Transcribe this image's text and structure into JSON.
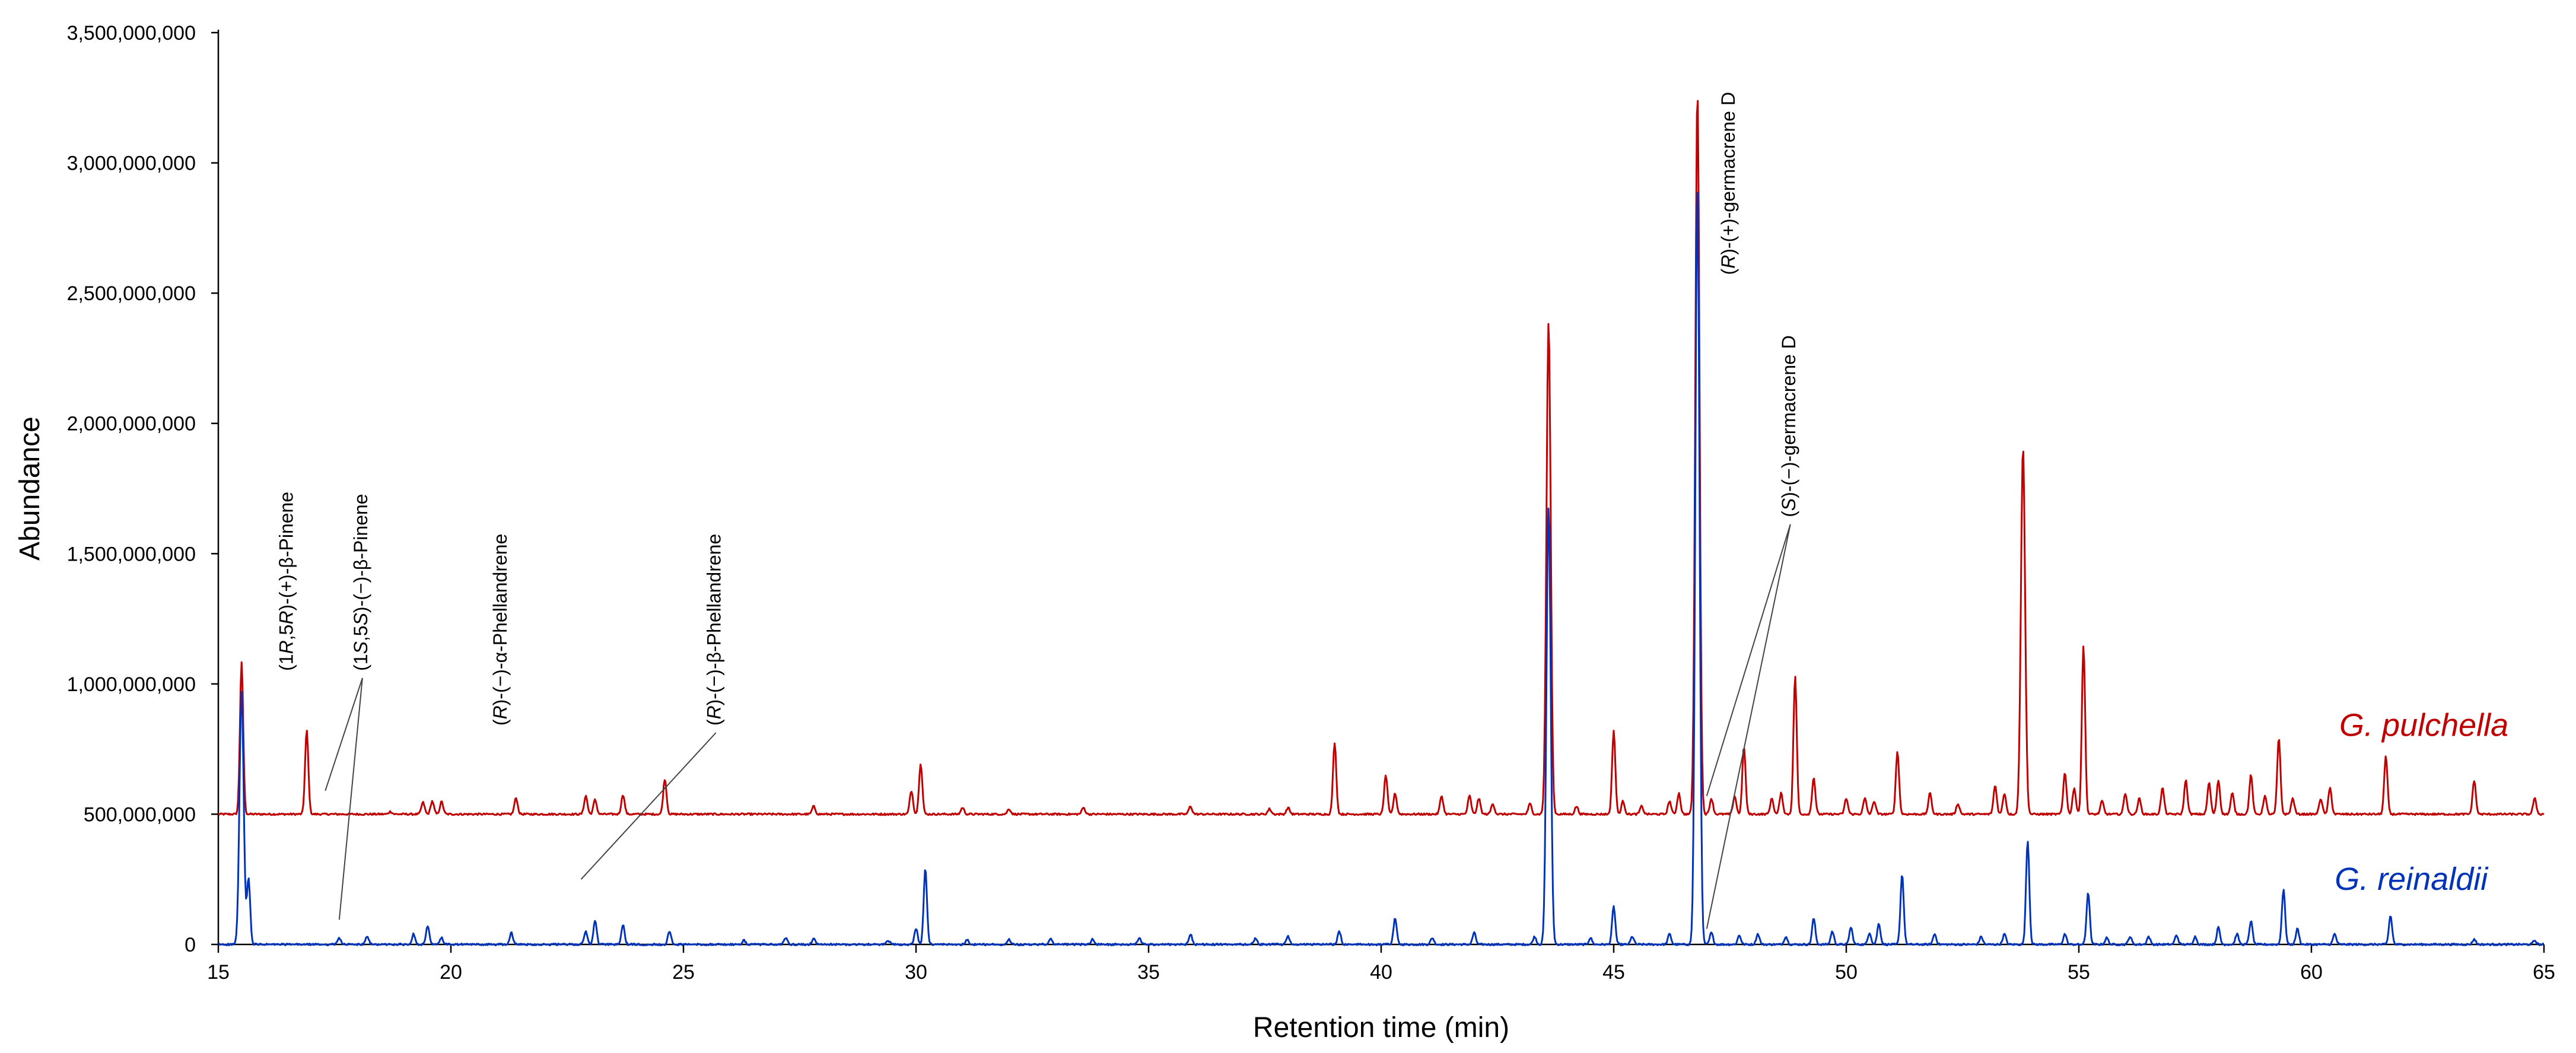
{
  "colors": {
    "g_pulchella": "#c00000",
    "g_reinaldii": "#0033b8",
    "axis": "#000000",
    "leader": "#444444"
  },
  "chart_data": {
    "type": "line",
    "xlabel": "Retention time (min)",
    "ylabel": "Abundance",
    "xlim": [
      15,
      65
    ],
    "ylim": [
      0,
      3500000000
    ],
    "grid": false,
    "x_ticks": [
      15,
      20,
      25,
      30,
      35,
      40,
      45,
      50,
      55,
      60,
      65
    ],
    "x_tick_labels": [
      "15",
      "20",
      "25",
      "30",
      "35",
      "40",
      "45",
      "50",
      "55",
      "60",
      "65"
    ],
    "y_ticks": [
      0,
      500000000,
      1000000000,
      1500000000,
      2000000000,
      2500000000,
      3000000000,
      3500000000
    ],
    "y_tick_labels": [
      "0",
      "500,000,000",
      "1,000,000,000",
      "1,500,000,000",
      "2,000,000,000",
      "2,500,000,000",
      "3,000,000,000",
      "3,500,000,000"
    ],
    "series": [
      {
        "name": "G. pulchella",
        "color": "#c00000",
        "baseline": 500000000,
        "label_position": "right, above baseline",
        "peaks": [
          [
            15.5,
            1080000000
          ],
          [
            16.9,
            820000000
          ],
          [
            18.7,
            510000000
          ],
          [
            19.4,
            545000000
          ],
          [
            19.6,
            550000000
          ],
          [
            19.8,
            548000000
          ],
          [
            21.4,
            562000000
          ],
          [
            22.9,
            570000000
          ],
          [
            23.1,
            555000000
          ],
          [
            23.7,
            575000000
          ],
          [
            24.6,
            635000000
          ],
          [
            27.8,
            530000000
          ],
          [
            29.9,
            590000000
          ],
          [
            30.1,
            695000000
          ],
          [
            31.0,
            525000000
          ],
          [
            32.0,
            520000000
          ],
          [
            33.6,
            525000000
          ],
          [
            35.9,
            530000000
          ],
          [
            37.6,
            520000000
          ],
          [
            38.0,
            525000000
          ],
          [
            39.0,
            775000000
          ],
          [
            40.1,
            650000000
          ],
          [
            40.3,
            580000000
          ],
          [
            41.3,
            570000000
          ],
          [
            41.9,
            570000000
          ],
          [
            42.1,
            560000000
          ],
          [
            42.4,
            540000000
          ],
          [
            43.2,
            540000000
          ],
          [
            43.6,
            2390000000
          ],
          [
            44.2,
            530000000
          ],
          [
            45.0,
            820000000
          ],
          [
            45.2,
            550000000
          ],
          [
            45.6,
            530000000
          ],
          [
            46.2,
            550000000
          ],
          [
            46.4,
            580000000
          ],
          [
            46.8,
            3280000000
          ],
          [
            47.1,
            560000000
          ],
          [
            47.6,
            570000000
          ],
          [
            47.8,
            760000000
          ],
          [
            48.4,
            560000000
          ],
          [
            48.6,
            580000000
          ],
          [
            48.9,
            1030000000
          ],
          [
            49.3,
            640000000
          ],
          [
            50.0,
            560000000
          ],
          [
            50.4,
            560000000
          ],
          [
            50.6,
            550000000
          ],
          [
            51.1,
            740000000
          ],
          [
            51.8,
            580000000
          ],
          [
            52.4,
            540000000
          ],
          [
            53.2,
            610000000
          ],
          [
            53.4,
            580000000
          ],
          [
            53.8,
            1910000000
          ],
          [
            54.7,
            660000000
          ],
          [
            54.9,
            600000000
          ],
          [
            55.1,
            1150000000
          ],
          [
            55.5,
            550000000
          ],
          [
            56.0,
            580000000
          ],
          [
            56.3,
            560000000
          ],
          [
            56.8,
            600000000
          ],
          [
            57.3,
            630000000
          ],
          [
            57.8,
            620000000
          ],
          [
            58.0,
            630000000
          ],
          [
            58.3,
            580000000
          ],
          [
            58.7,
            650000000
          ],
          [
            59.0,
            570000000
          ],
          [
            59.3,
            790000000
          ],
          [
            59.6,
            560000000
          ],
          [
            60.2,
            560000000
          ],
          [
            60.4,
            600000000
          ],
          [
            61.6,
            720000000
          ],
          [
            63.5,
            630000000
          ],
          [
            64.8,
            560000000
          ]
        ]
      },
      {
        "name": "G. reinaldii",
        "color": "#0033b8",
        "baseline": 0,
        "label_position": "right, near baseline",
        "peaks": [
          [
            15.5,
            970000000
          ],
          [
            15.65,
            250000000
          ],
          [
            17.6,
            25000000
          ],
          [
            18.2,
            30000000
          ],
          [
            19.2,
            40000000
          ],
          [
            19.5,
            70000000
          ],
          [
            19.8,
            25000000
          ],
          [
            21.3,
            45000000
          ],
          [
            22.9,
            50000000
          ],
          [
            23.1,
            90000000
          ],
          [
            23.7,
            75000000
          ],
          [
            24.7,
            50000000
          ],
          [
            26.3,
            15000000
          ],
          [
            27.2,
            25000000
          ],
          [
            27.8,
            20000000
          ],
          [
            29.4,
            15000000
          ],
          [
            30.0,
            60000000
          ],
          [
            30.2,
            290000000
          ],
          [
            31.1,
            20000000
          ],
          [
            32.0,
            20000000
          ],
          [
            32.9,
            20000000
          ],
          [
            33.8,
            20000000
          ],
          [
            34.8,
            25000000
          ],
          [
            35.9,
            40000000
          ],
          [
            37.3,
            25000000
          ],
          [
            38.0,
            30000000
          ],
          [
            39.1,
            50000000
          ],
          [
            40.3,
            100000000
          ],
          [
            41.1,
            25000000
          ],
          [
            42.0,
            45000000
          ],
          [
            43.3,
            30000000
          ],
          [
            43.6,
            1680000000
          ],
          [
            44.5,
            25000000
          ],
          [
            45.0,
            145000000
          ],
          [
            45.4,
            30000000
          ],
          [
            46.2,
            40000000
          ],
          [
            46.8,
            2930000000
          ],
          [
            47.1,
            45000000
          ],
          [
            47.7,
            35000000
          ],
          [
            48.1,
            40000000
          ],
          [
            48.7,
            30000000
          ],
          [
            49.3,
            100000000
          ],
          [
            49.7,
            50000000
          ],
          [
            50.1,
            65000000
          ],
          [
            50.5,
            45000000
          ],
          [
            50.7,
            80000000
          ],
          [
            51.2,
            270000000
          ],
          [
            51.9,
            40000000
          ],
          [
            52.9,
            30000000
          ],
          [
            53.4,
            40000000
          ],
          [
            53.9,
            400000000
          ],
          [
            54.7,
            40000000
          ],
          [
            55.2,
            200000000
          ],
          [
            55.6,
            25000000
          ],
          [
            56.1,
            30000000
          ],
          [
            56.5,
            30000000
          ],
          [
            57.1,
            35000000
          ],
          [
            57.5,
            30000000
          ],
          [
            58.0,
            65000000
          ],
          [
            58.4,
            40000000
          ],
          [
            58.7,
            90000000
          ],
          [
            59.4,
            210000000
          ],
          [
            59.7,
            60000000
          ],
          [
            60.5,
            40000000
          ],
          [
            61.7,
            110000000
          ],
          [
            63.5,
            20000000
          ],
          [
            64.8,
            15000000
          ]
        ]
      }
    ],
    "annotations": [
      {
        "prefix": "(1",
        "italic1": "R",
        "mid": ",5",
        "italic2": "R",
        "suffix": ")-(+)-β-Pinene",
        "x": 16.6,
        "y": 1050000000,
        "targets": []
      },
      {
        "prefix": "(1",
        "italic1": "S",
        "mid": ",5",
        "italic2": "S",
        "suffix": ")-(−)-β-Pinene",
        "x": 18.2,
        "y": 1050000000,
        "targets": [
          [
            17.3,
            590000000
          ],
          [
            17.6,
            95000000
          ]
        ]
      },
      {
        "prefix": "(",
        "italic1": "R",
        "mid": "",
        "italic2": "",
        "suffix": ")-(−)-α-Phellandrene",
        "x": 21.2,
        "y": 840000000,
        "targets": []
      },
      {
        "prefix": "(",
        "italic1": "R",
        "mid": "",
        "italic2": "",
        "suffix": ")-(−)-β-Phellandrene",
        "x": 25.8,
        "y": 840000000,
        "targets": [
          [
            22.8,
            250000000
          ]
        ]
      },
      {
        "prefix": "(",
        "italic1": "R",
        "mid": "",
        "italic2": "",
        "suffix": ")-(+)-germacrene D",
        "x": 47.6,
        "y": 2570000000,
        "targets": []
      },
      {
        "prefix": "(",
        "italic1": "S",
        "mid": "",
        "italic2": "",
        "suffix": ")-(−)-germacrene D",
        "x": 48.9,
        "y": 1640000000,
        "targets": [
          [
            47.0,
            570000000
          ],
          [
            47.0,
            60000000
          ]
        ]
      }
    ],
    "series_labels": [
      {
        "text": "G. pulchella",
        "x": 60.6,
        "y": 800000000
      },
      {
        "text": "G. reinaldii",
        "x": 60.5,
        "y": 210000000
      }
    ]
  }
}
